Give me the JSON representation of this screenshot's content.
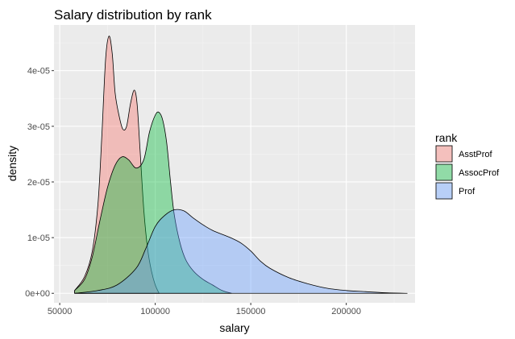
{
  "chart_data": {
    "type": "area",
    "title": "Salary distribution by rank",
    "xlabel": "salary",
    "ylabel": "density",
    "xlim": [
      47000,
      236000
    ],
    "ylim": [
      -1.7e-06,
      4.82e-05
    ],
    "x_ticks": [
      {
        "value": 50000,
        "label": "50000"
      },
      {
        "value": 100000,
        "label": "100000"
      },
      {
        "value": 150000,
        "label": "150000"
      },
      {
        "value": 200000,
        "label": "200000"
      }
    ],
    "y_ticks": [
      {
        "value": 0,
        "label": "0e+00"
      },
      {
        "value": 1e-05,
        "label": "1e-05"
      },
      {
        "value": 2e-05,
        "label": "2e-05"
      },
      {
        "value": 3e-05,
        "label": "3e-05"
      },
      {
        "value": 4e-05,
        "label": "4e-05"
      }
    ],
    "grid": true,
    "legend": {
      "title": "rank",
      "position": "right"
    },
    "series": [
      {
        "name": "AsstProf",
        "color": "#F8766D",
        "points": [
          [
            57800,
            5e-07
          ],
          [
            63000,
            3e-06
          ],
          [
            67000,
            7.5e-06
          ],
          [
            70000,
            1.6e-05
          ],
          [
            72000,
            2.8e-05
          ],
          [
            74000,
            4.2e-05
          ],
          [
            75800,
            4.62e-05
          ],
          [
            77500,
            4.3e-05
          ],
          [
            79000,
            3.6e-05
          ],
          [
            81000,
            3.2e-05
          ],
          [
            83000,
            2.95e-05
          ],
          [
            85000,
            3e-05
          ],
          [
            87000,
            3.4e-05
          ],
          [
            89000,
            3.65e-05
          ],
          [
            90500,
            3.4e-05
          ],
          [
            92000,
            2.6e-05
          ],
          [
            94000,
            1.5e-05
          ],
          [
            96000,
            8e-06
          ],
          [
            98000,
            4e-06
          ],
          [
            100000,
            1.5e-06
          ],
          [
            102000,
            0
          ]
        ]
      },
      {
        "name": "AssocProf",
        "color": "#00BA38",
        "points": [
          [
            57800,
            5e-07
          ],
          [
            63000,
            2.5e-06
          ],
          [
            67000,
            6.5e-06
          ],
          [
            71000,
            1.3e-05
          ],
          [
            75000,
            1.9e-05
          ],
          [
            79000,
            2.3e-05
          ],
          [
            82500,
            2.45e-05
          ],
          [
            86000,
            2.4e-05
          ],
          [
            90000,
            2.25e-05
          ],
          [
            94000,
            2.4e-05
          ],
          [
            97000,
            2.9e-05
          ],
          [
            100000,
            3.2e-05
          ],
          [
            102000,
            3.25e-05
          ],
          [
            104000,
            3.1e-05
          ],
          [
            106000,
            2.7e-05
          ],
          [
            108000,
            2e-05
          ],
          [
            110000,
            1.4e-05
          ],
          [
            113000,
            9e-06
          ],
          [
            116000,
            6e-06
          ],
          [
            120000,
            4e-06
          ],
          [
            125000,
            2.5e-06
          ],
          [
            130000,
            1.5e-06
          ],
          [
            135000,
            5e-07
          ],
          [
            140000,
            0
          ]
        ]
      },
      {
        "name": "Prof",
        "color": "#619CFF",
        "points": [
          [
            58000,
            0
          ],
          [
            70000,
            5e-07
          ],
          [
            80000,
            1.5e-06
          ],
          [
            90000,
            4.5e-06
          ],
          [
            95000,
            8e-06
          ],
          [
            100000,
            1.2e-05
          ],
          [
            105000,
            1.4e-05
          ],
          [
            110000,
            1.5e-05
          ],
          [
            115000,
            1.48e-05
          ],
          [
            120000,
            1.35e-05
          ],
          [
            125000,
            1.23e-05
          ],
          [
            130000,
            1.13e-05
          ],
          [
            135000,
            1.06e-05
          ],
          [
            140000,
            9.9e-06
          ],
          [
            145000,
            9e-06
          ],
          [
            150000,
            7.6e-06
          ],
          [
            155000,
            5.8e-06
          ],
          [
            160000,
            4.5e-06
          ],
          [
            170000,
            2.8e-06
          ],
          [
            180000,
            1.7e-06
          ],
          [
            190000,
            9e-07
          ],
          [
            200000,
            5e-07
          ],
          [
            210000,
            3e-07
          ],
          [
            220000,
            1e-07
          ],
          [
            232000,
            0
          ]
        ]
      }
    ]
  }
}
